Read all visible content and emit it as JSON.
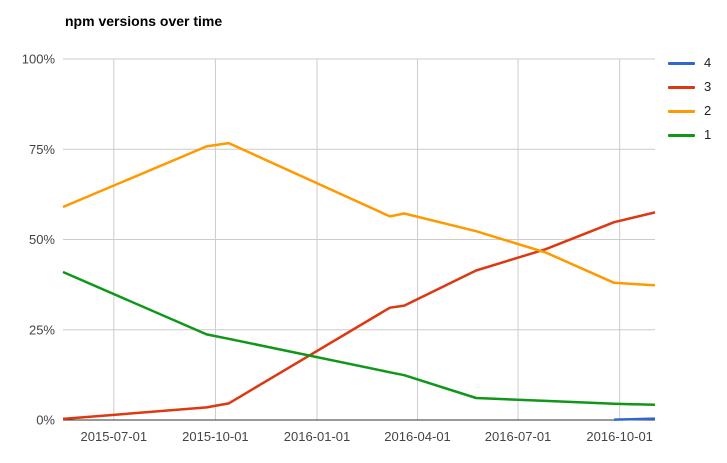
{
  "chart_data": {
    "type": "line",
    "title": "npm versions over time",
    "x_type": "date",
    "x": [
      "2015-05-16",
      "2015-09-23",
      "2015-10-13",
      "2016-03-07",
      "2016-03-20",
      "2016-05-24",
      "2016-07-26",
      "2016-09-26",
      "2016-11-02"
    ],
    "series": [
      {
        "name": "4",
        "color": "#3366cc",
        "values": [
          null,
          null,
          null,
          null,
          null,
          null,
          null,
          0.1,
          0.4
        ]
      },
      {
        "name": "3",
        "color": "#dc3912",
        "values": [
          0.3,
          3.5,
          4.6,
          31.1,
          31.7,
          41.4,
          47.3,
          54.8,
          57.5
        ]
      },
      {
        "name": "2",
        "color": "#ff9900",
        "values": [
          59.0,
          75.8,
          76.7,
          56.4,
          57.2,
          52.3,
          46.4,
          38.0,
          37.3
        ]
      },
      {
        "name": "1",
        "color": "#109618",
        "values": [
          41.0,
          23.7,
          22.5,
          13.2,
          12.4,
          6.1,
          5.3,
          4.5,
          4.2
        ]
      }
    ],
    "y_axis": {
      "tick_labels": [
        "0%",
        "25%",
        "50%",
        "75%",
        "100%"
      ],
      "tick_values": [
        0,
        25,
        50,
        75,
        100
      ],
      "range": [
        0,
        100
      ]
    },
    "x_axis": {
      "tick_labels": [
        "2015-07-01",
        "2015-10-01",
        "2016-01-01",
        "2016-04-01",
        "2016-07-01",
        "2016-10-01"
      ]
    },
    "legend": {
      "position": "right",
      "entries": [
        "4",
        "3",
        "2",
        "1"
      ]
    },
    "grid": true,
    "styles": {
      "grid_color": "#cccccc",
      "baseline_color": "#333333",
      "axis_label_color": "#444444",
      "legend_text_color": "#222222",
      "title_color": "#000000",
      "line_width": 2.5
    }
  }
}
